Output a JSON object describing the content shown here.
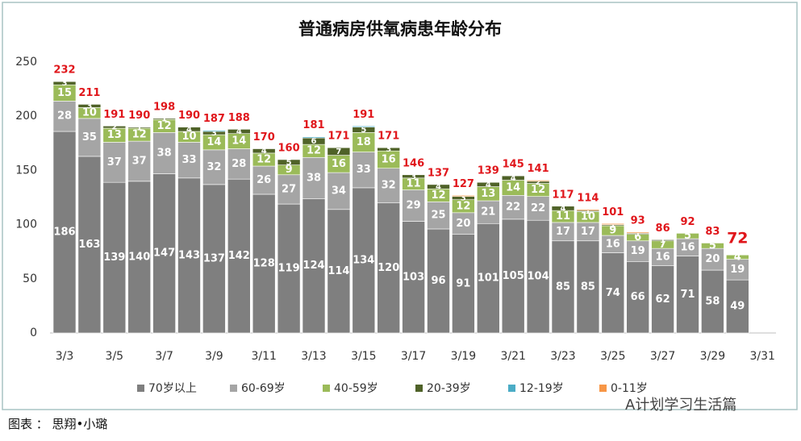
{
  "chart_data": {
    "type": "stacked-bar",
    "title": "普通病房供氧病患年龄分布",
    "categories": [
      "3/3",
      null,
      "3/5",
      null,
      "3/7",
      null,
      "3/9",
      null,
      "3/11",
      null,
      "3/13",
      null,
      "3/15",
      null,
      "3/17",
      null,
      "3/19",
      null,
      "3/21",
      null,
      "3/23",
      null,
      "3/25",
      null,
      "3/27",
      null,
      "3/29",
      null,
      "3/31"
    ],
    "series": [
      {
        "name": "70岁以上",
        "color": "#7f7f7f",
        "values": [
          186,
          163,
          139,
          140,
          147,
          143,
          137,
          142,
          128,
          119,
          124,
          114,
          134,
          120,
          103,
          96,
          91,
          101,
          105,
          104,
          85,
          85,
          74,
          66,
          62,
          71,
          58,
          49,
          null
        ]
      },
      {
        "name": "60-69岁",
        "color": "#a5a5a5",
        "values": [
          28,
          35,
          37,
          37,
          38,
          33,
          32,
          28,
          26,
          27,
          38,
          34,
          33,
          32,
          29,
          25,
          20,
          21,
          22,
          22,
          17,
          17,
          16,
          19,
          16,
          16,
          20,
          19,
          null
        ]
      },
      {
        "name": "40-59岁",
        "color": "#9bbb59",
        "values": [
          15,
          10,
          13,
          12,
          12,
          10,
          14,
          14,
          12,
          9,
          12,
          16,
          18,
          16,
          11,
          12,
          12,
          13,
          14,
          12,
          11,
          10,
          9,
          6,
          7,
          5,
          5,
          4,
          null
        ]
      },
      {
        "name": "20-39岁",
        "color": "#4f6228",
        "values": [
          3,
          3,
          2,
          1,
          1,
          4,
          3,
          4,
          4,
          5,
          6,
          7,
          5,
          3,
          3,
          4,
          3,
          4,
          4,
          2,
          4,
          1,
          1,
          1,
          1,
          0,
          0,
          0,
          null
        ]
      },
      {
        "name": "12-19岁",
        "color": "#4bacc6",
        "values": [
          0,
          0,
          0,
          0,
          0,
          0,
          1,
          0,
          0,
          0,
          1,
          0,
          1,
          0,
          0,
          0,
          0,
          0,
          0,
          0,
          0,
          0,
          0,
          0,
          0,
          0,
          0,
          0,
          null
        ]
      },
      {
        "name": "0-11岁",
        "color": "#f79646",
        "values": [
          0,
          0,
          0,
          0,
          0,
          0,
          0,
          0,
          0,
          0,
          0,
          0,
          0,
          0,
          0,
          0,
          1,
          0,
          0,
          1,
          0,
          1,
          1,
          1,
          0,
          0,
          0,
          0,
          null
        ]
      }
    ],
    "totals": [
      232,
      211,
      191,
      190,
      198,
      190,
      187,
      188,
      170,
      160,
      181,
      171,
      191,
      171,
      146,
      137,
      127,
      139,
      145,
      141,
      117,
      114,
      101,
      93,
      86,
      92,
      83,
      72,
      null
    ],
    "ylim": [
      0,
      250
    ],
    "yticks": [
      0,
      50,
      100,
      150,
      200,
      250
    ],
    "grid": false,
    "legend": "bottom"
  },
  "footer": "图表 ： 思翔•小璐",
  "watermark": "A计划学习生活篇"
}
